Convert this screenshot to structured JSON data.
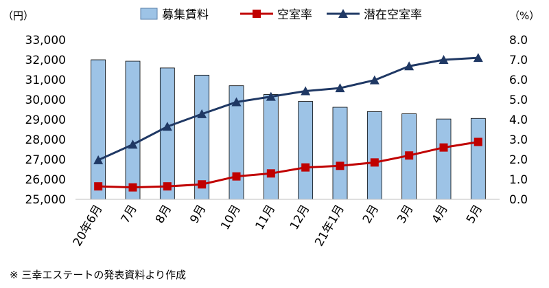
{
  "chart_data": {
    "type": "bar",
    "categories": [
      "20年6月",
      "7月",
      "8月",
      "9月",
      "10月",
      "11月",
      "12月",
      "21年1月",
      "2月",
      "3月",
      "4月",
      "5月"
    ],
    "left_axis": {
      "unit": "（円）",
      "ylim": [
        25000,
        33000
      ],
      "ticks": [
        "25,000",
        "26,000",
        "27,000",
        "28,000",
        "29,000",
        "30,000",
        "31,000",
        "32,000",
        "33,000"
      ]
    },
    "right_axis": {
      "unit": "（%）",
      "ylim": [
        0.0,
        8.0
      ],
      "ticks": [
        "0.0",
        "1.0",
        "2.0",
        "3.0",
        "4.0",
        "5.0",
        "6.0",
        "7.0",
        "8.0"
      ]
    },
    "series": [
      {
        "name": "募集賃料",
        "kind": "bar",
        "axis": "left",
        "color": "#9dc3e6",
        "values": [
          32000,
          31930,
          31590,
          31230,
          30700,
          30260,
          29910,
          29620,
          29400,
          29290,
          29030,
          29060
        ]
      },
      {
        "name": "空室率",
        "kind": "line",
        "axis": "right",
        "color": "#c00000",
        "marker": "square",
        "values": [
          0.65,
          0.6,
          0.65,
          0.75,
          1.15,
          1.3,
          1.6,
          1.68,
          1.85,
          2.2,
          2.6,
          2.88
        ]
      },
      {
        "name": "潜在空室率",
        "kind": "line",
        "axis": "right",
        "color": "#1f3864",
        "marker": "triangle",
        "values": [
          1.97,
          2.75,
          3.65,
          4.28,
          4.88,
          5.15,
          5.43,
          5.58,
          5.98,
          6.68,
          7.0,
          7.1
        ]
      }
    ],
    "grid": false,
    "legend": "top"
  },
  "footnote": "※ 三幸エステートの発表資料より作成"
}
